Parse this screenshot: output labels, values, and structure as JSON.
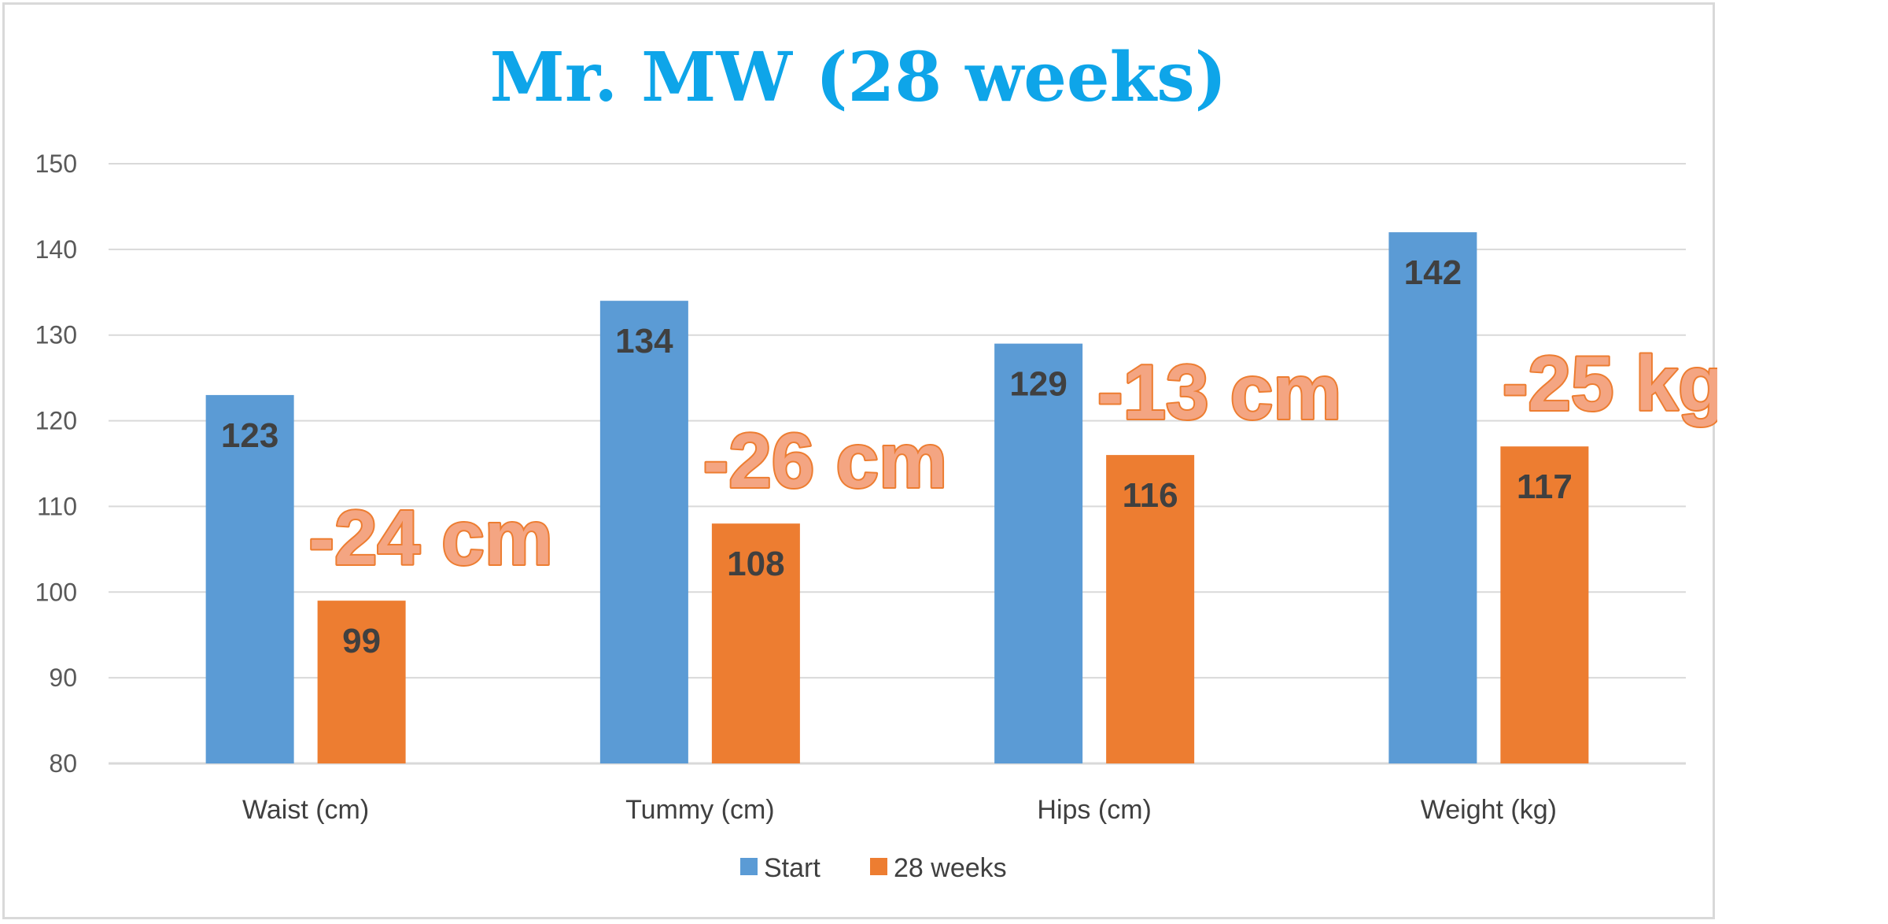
{
  "chart_data": {
    "type": "bar",
    "title": "Mr. MW (28 weeks)",
    "categories": [
      "Waist (cm)",
      "Tummy (cm)",
      "Hips (cm)",
      "Weight (kg)"
    ],
    "series": [
      {
        "name": "Start",
        "values": [
          123,
          134,
          129,
          142
        ],
        "color": "#5b9bd5"
      },
      {
        "name": "28 weeks",
        "values": [
          99,
          108,
          116,
          117
        ],
        "color": "#ed7d31"
      }
    ],
    "ylim": [
      80,
      150
    ],
    "yticks": [
      80,
      90,
      100,
      110,
      120,
      130,
      140,
      150
    ],
    "grid": true,
    "legend_position": "bottom",
    "annotations": [
      "-24 cm",
      "-26 cm",
      "-13 cm",
      "-25 kg"
    ],
    "title_color": "#0ea5e9",
    "annotation_color": "#f4a582",
    "annotation_stroke": "#ed7d31"
  }
}
